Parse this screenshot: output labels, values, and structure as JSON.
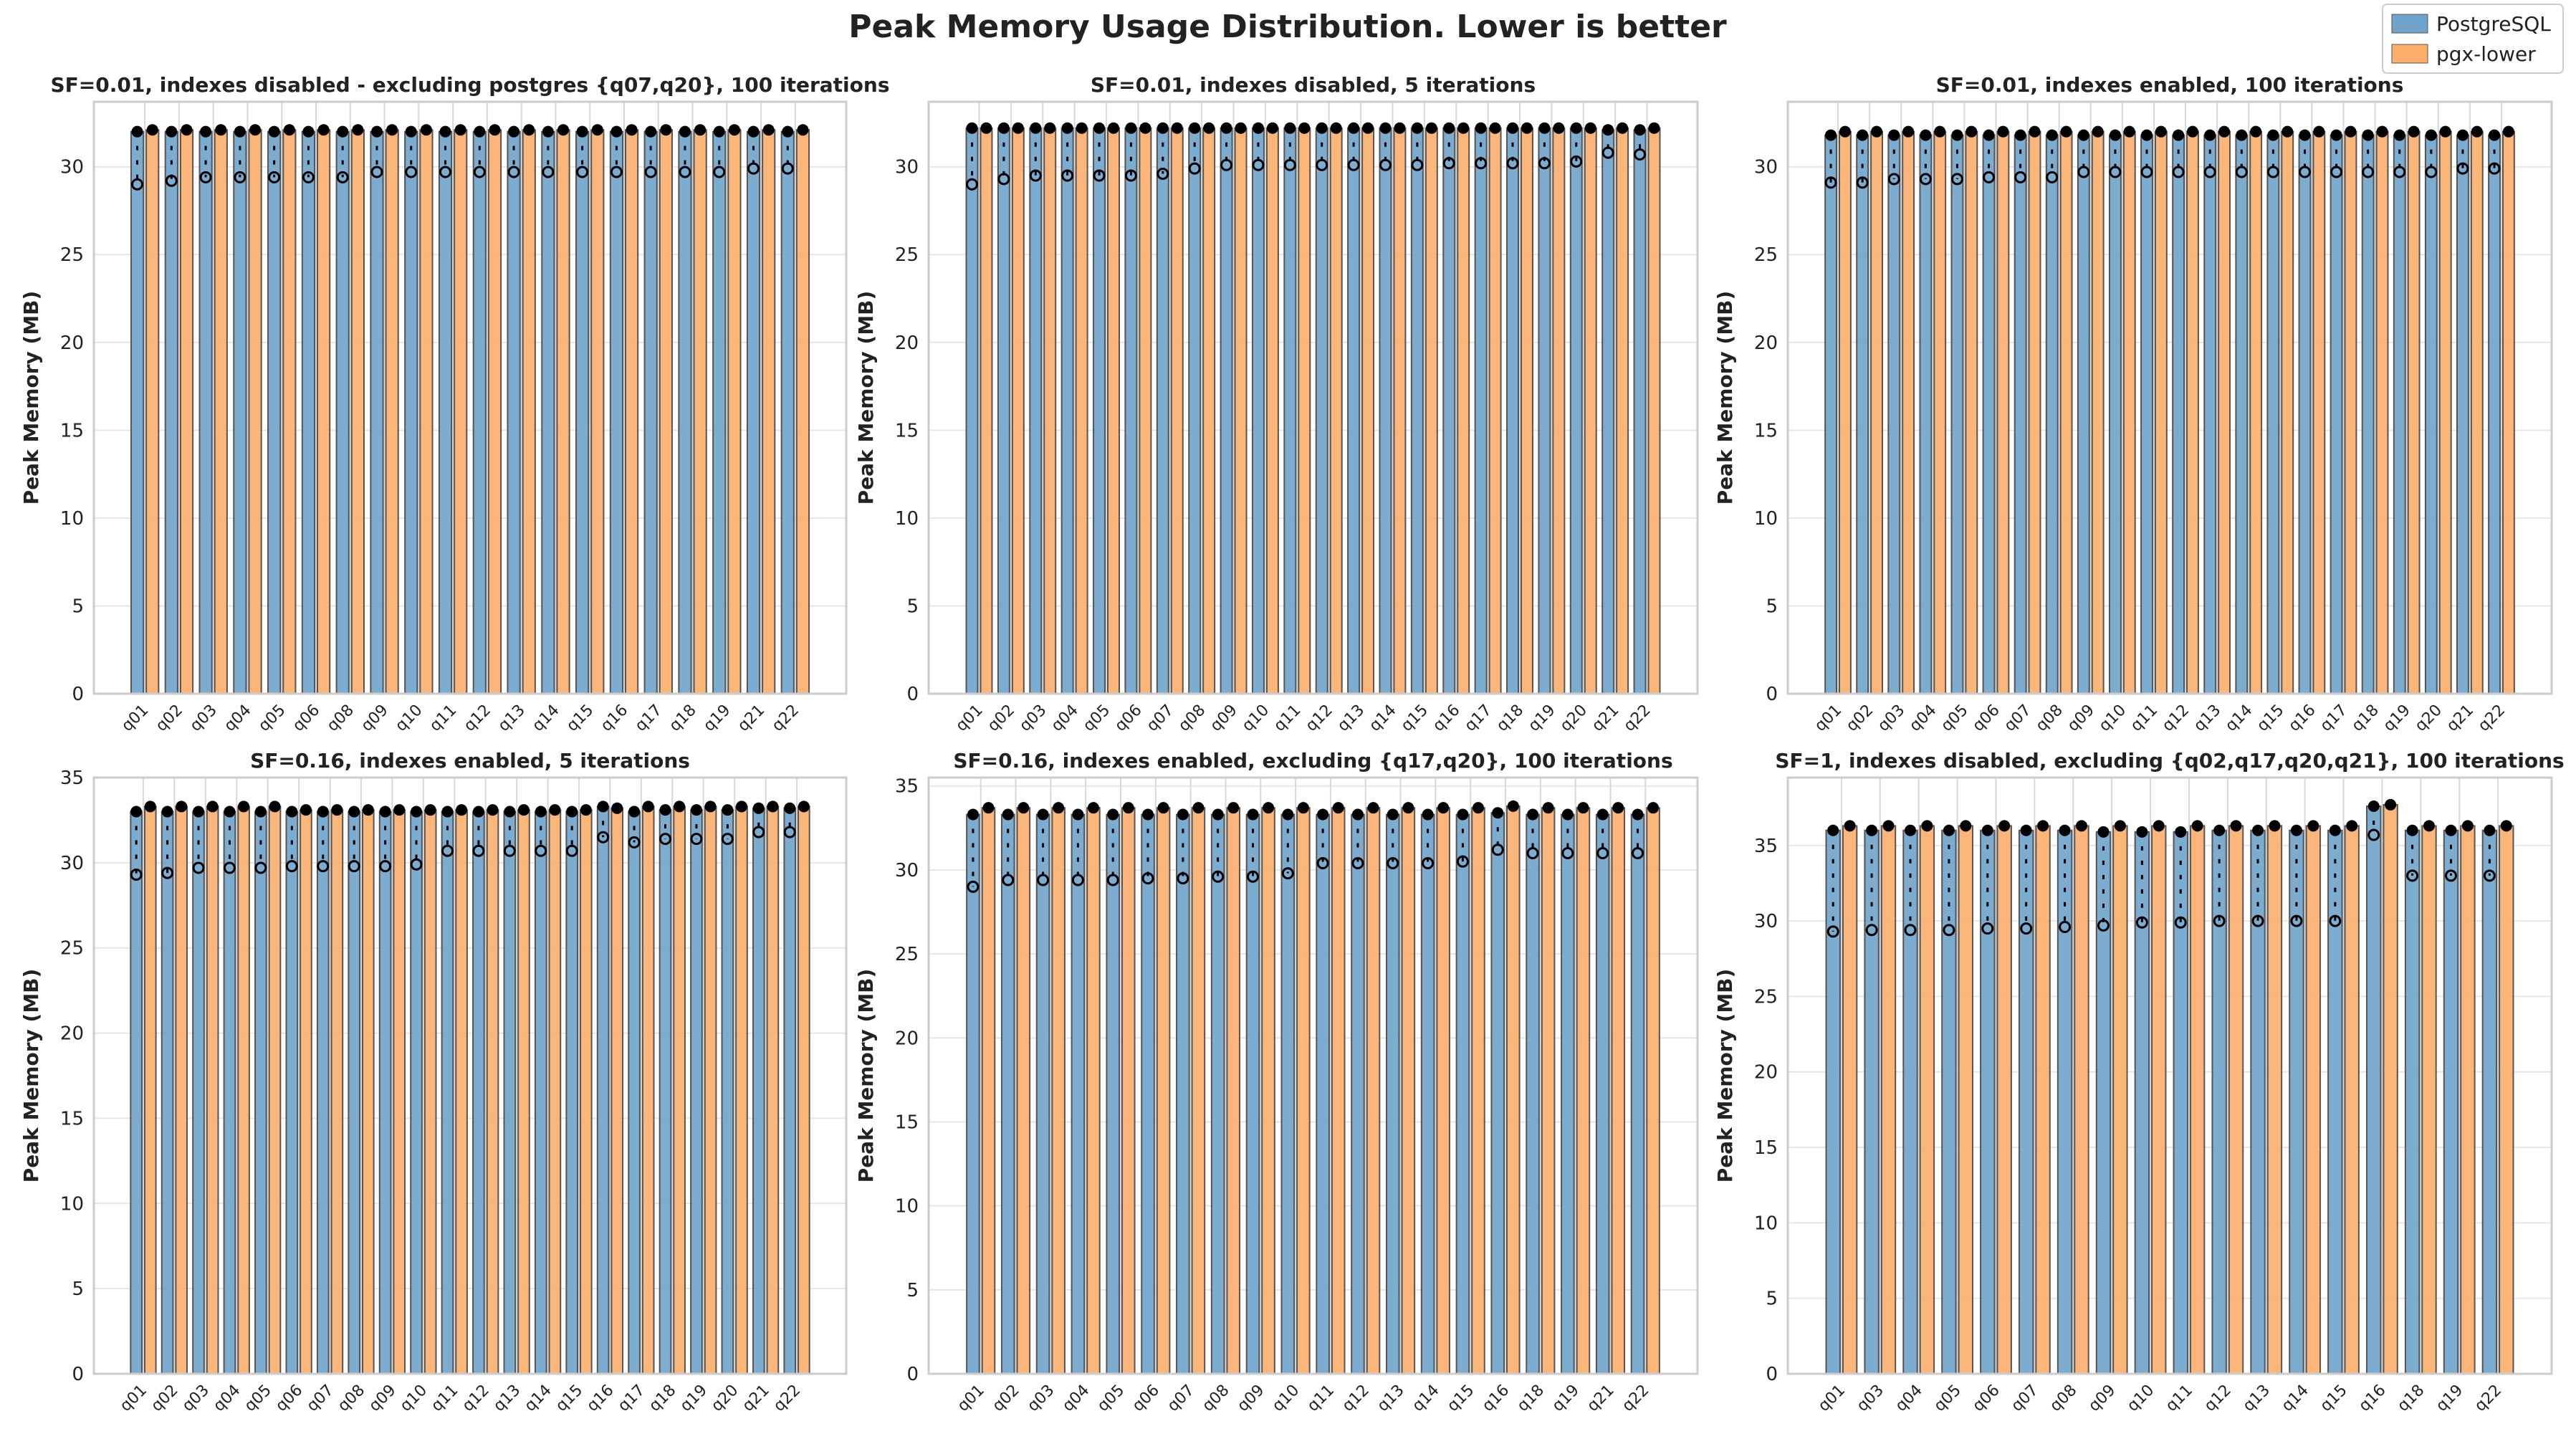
{
  "title": "Peak Memory Usage Distribution. Lower is better",
  "legend": {
    "placement": "top-right",
    "items": [
      {
        "name": "PostgreSQL",
        "color": "#6fa3cc"
      },
      {
        "name": "pgx-lower",
        "color": "#fdae6b"
      }
    ]
  },
  "chart_data": [
    {
      "type": "bar",
      "title": "SF=0.01, indexes disabled - excluding postgres {q07,q20}, 100 iterations",
      "ylabel": "Peak Memory (MB)",
      "ylim": [
        0,
        33.7
      ],
      "yticks": [
        0,
        5,
        10,
        15,
        20,
        25,
        30
      ],
      "grid": true,
      "categories": [
        "q01",
        "q02",
        "q03",
        "q04",
        "q05",
        "q06",
        "q08",
        "q09",
        "q10",
        "q11",
        "q12",
        "q13",
        "q14",
        "q15",
        "q16",
        "q17",
        "q18",
        "q19",
        "q21",
        "q22"
      ],
      "series": [
        {
          "name": "PostgreSQL",
          "values": [
            32.0,
            32.0,
            32.0,
            32.0,
            32.0,
            32.0,
            32.0,
            32.0,
            32.0,
            32.0,
            32.0,
            32.0,
            32.0,
            32.0,
            32.0,
            32.0,
            32.0,
            32.0,
            32.0,
            32.0
          ],
          "min_outliers": [
            29.0,
            29.2,
            29.4,
            29.4,
            29.4,
            29.4,
            29.4,
            29.7,
            29.7,
            29.7,
            29.7,
            29.7,
            29.7,
            29.7,
            29.7,
            29.7,
            29.7,
            29.7,
            29.9,
            29.9
          ]
        },
        {
          "name": "pgx-lower",
          "values": [
            32.1,
            32.1,
            32.1,
            32.1,
            32.1,
            32.1,
            32.1,
            32.1,
            32.1,
            32.1,
            32.1,
            32.1,
            32.1,
            32.1,
            32.1,
            32.1,
            32.1,
            32.1,
            32.1,
            32.1
          ]
        }
      ]
    },
    {
      "type": "bar",
      "title": "SF=0.01, indexes disabled, 5 iterations",
      "ylabel": "Peak Memory (MB)",
      "ylim": [
        0,
        33.7
      ],
      "yticks": [
        0,
        5,
        10,
        15,
        20,
        25,
        30
      ],
      "grid": true,
      "categories": [
        "q01",
        "q02",
        "q03",
        "q04",
        "q05",
        "q06",
        "q07",
        "q08",
        "q09",
        "q10",
        "q11",
        "q12",
        "q13",
        "q14",
        "q15",
        "q16",
        "q17",
        "q18",
        "q19",
        "q20",
        "q21",
        "q22"
      ],
      "series": [
        {
          "name": "PostgreSQL",
          "values": [
            32.2,
            32.2,
            32.2,
            32.2,
            32.2,
            32.2,
            32.2,
            32.2,
            32.2,
            32.2,
            32.2,
            32.2,
            32.2,
            32.2,
            32.2,
            32.2,
            32.2,
            32.2,
            32.2,
            32.2,
            32.1,
            32.1
          ],
          "min_outliers": [
            29.0,
            29.3,
            29.5,
            29.5,
            29.5,
            29.5,
            29.6,
            29.9,
            30.1,
            30.1,
            30.1,
            30.1,
            30.1,
            30.1,
            30.1,
            30.2,
            30.2,
            30.2,
            30.2,
            30.3,
            30.8,
            30.7
          ]
        },
        {
          "name": "pgx-lower",
          "values": [
            32.2,
            32.2,
            32.2,
            32.2,
            32.2,
            32.2,
            32.2,
            32.2,
            32.2,
            32.2,
            32.2,
            32.2,
            32.2,
            32.2,
            32.2,
            32.2,
            32.2,
            32.2,
            32.2,
            32.2,
            32.2,
            32.2
          ]
        }
      ]
    },
    {
      "type": "bar",
      "title": "SF=0.01, indexes enabled, 100 iterations",
      "ylabel": "Peak Memory (MB)",
      "ylim": [
        0,
        33.7
      ],
      "yticks": [
        0,
        5,
        10,
        15,
        20,
        25,
        30
      ],
      "grid": true,
      "categories": [
        "q01",
        "q02",
        "q03",
        "q04",
        "q05",
        "q06",
        "q07",
        "q08",
        "q09",
        "q10",
        "q11",
        "q12",
        "q13",
        "q14",
        "q15",
        "q16",
        "q17",
        "q18",
        "q19",
        "q20",
        "q21",
        "q22"
      ],
      "series": [
        {
          "name": "PostgreSQL",
          "values": [
            31.8,
            31.8,
            31.8,
            31.8,
            31.8,
            31.8,
            31.8,
            31.8,
            31.8,
            31.8,
            31.8,
            31.8,
            31.8,
            31.8,
            31.8,
            31.8,
            31.8,
            31.8,
            31.8,
            31.8,
            31.8,
            31.8
          ],
          "min_outliers": [
            29.1,
            29.1,
            29.3,
            29.3,
            29.3,
            29.4,
            29.4,
            29.4,
            29.7,
            29.7,
            29.7,
            29.7,
            29.7,
            29.7,
            29.7,
            29.7,
            29.7,
            29.7,
            29.7,
            29.7,
            29.9,
            29.9
          ]
        },
        {
          "name": "pgx-lower",
          "values": [
            32.0,
            32.0,
            32.0,
            32.0,
            32.0,
            32.0,
            32.0,
            32.0,
            32.0,
            32.0,
            32.0,
            32.0,
            32.0,
            32.0,
            32.0,
            32.0,
            32.0,
            32.0,
            32.0,
            32.0,
            32.0,
            32.0
          ]
        }
      ]
    },
    {
      "type": "bar",
      "title": "SF=0.16, indexes enabled, 5 iterations",
      "ylabel": "Peak Memory (MB)",
      "ylim": [
        0,
        35.0
      ],
      "yticks": [
        0,
        5,
        10,
        15,
        20,
        25,
        30,
        35
      ],
      "grid": true,
      "categories": [
        "q01",
        "q02",
        "q03",
        "q04",
        "q05",
        "q06",
        "q07",
        "q08",
        "q09",
        "q10",
        "q11",
        "q12",
        "q13",
        "q14",
        "q15",
        "q16",
        "q17",
        "q18",
        "q19",
        "q20",
        "q21",
        "q22"
      ],
      "series": [
        {
          "name": "PostgreSQL",
          "values": [
            33.0,
            33.0,
            33.0,
            33.0,
            33.0,
            33.0,
            33.0,
            33.0,
            33.0,
            33.0,
            33.0,
            33.0,
            33.0,
            33.0,
            33.0,
            33.3,
            33.0,
            33.1,
            33.1,
            33.1,
            33.2,
            33.2
          ],
          "min_outliers": [
            29.3,
            29.4,
            29.7,
            29.7,
            29.7,
            29.8,
            29.8,
            29.8,
            29.8,
            29.9,
            30.7,
            30.7,
            30.7,
            30.7,
            30.7,
            31.5,
            31.2,
            31.4,
            31.4,
            31.4,
            31.8,
            31.8
          ]
        },
        {
          "name": "pgx-lower",
          "values": [
            33.3,
            33.3,
            33.3,
            33.3,
            33.3,
            33.1,
            33.1,
            33.1,
            33.1,
            33.1,
            33.1,
            33.1,
            33.1,
            33.1,
            33.1,
            33.2,
            33.3,
            33.3,
            33.3,
            33.3,
            33.3,
            33.3
          ]
        }
      ]
    },
    {
      "type": "bar",
      "title": "SF=0.16, indexes enabled, excluding {q17,q20}, 100 iterations",
      "ylabel": "Peak Memory (MB)",
      "ylim": [
        0,
        35.5
      ],
      "yticks": [
        0,
        5,
        10,
        15,
        20,
        25,
        30,
        35
      ],
      "grid": true,
      "categories": [
        "q01",
        "q02",
        "q03",
        "q04",
        "q05",
        "q06",
        "q07",
        "q08",
        "q09",
        "q10",
        "q11",
        "q12",
        "q13",
        "q14",
        "q15",
        "q16",
        "q18",
        "q19",
        "q21",
        "q22"
      ],
      "series": [
        {
          "name": "PostgreSQL",
          "values": [
            33.3,
            33.3,
            33.3,
            33.3,
            33.3,
            33.3,
            33.3,
            33.3,
            33.3,
            33.3,
            33.3,
            33.3,
            33.3,
            33.3,
            33.3,
            33.4,
            33.3,
            33.3,
            33.3,
            33.3
          ],
          "min_outliers": [
            29.0,
            29.4,
            29.4,
            29.4,
            29.4,
            29.5,
            29.5,
            29.6,
            29.6,
            29.8,
            30.4,
            30.4,
            30.4,
            30.4,
            30.5,
            31.2,
            31.0,
            31.0,
            31.0,
            31.0
          ]
        },
        {
          "name": "pgx-lower",
          "values": [
            33.7,
            33.7,
            33.7,
            33.7,
            33.7,
            33.7,
            33.7,
            33.7,
            33.7,
            33.7,
            33.7,
            33.7,
            33.7,
            33.7,
            33.7,
            33.8,
            33.7,
            33.7,
            33.7,
            33.7
          ]
        }
      ]
    },
    {
      "type": "bar",
      "title": "SF=1, indexes disabled, excluding {q02,q17,q20,q21}, 100 iterations",
      "ylabel": "Peak Memory (MB)",
      "ylim": [
        0,
        39.5
      ],
      "yticks": [
        0,
        5,
        10,
        15,
        20,
        25,
        30,
        35
      ],
      "grid": true,
      "categories": [
        "q01",
        "q03",
        "q04",
        "q05",
        "q06",
        "q07",
        "q08",
        "q09",
        "q10",
        "q11",
        "q12",
        "q13",
        "q14",
        "q15",
        "q16",
        "q18",
        "q19",
        "q22"
      ],
      "series": [
        {
          "name": "PostgreSQL",
          "values": [
            36.0,
            36.0,
            36.0,
            36.0,
            36.0,
            36.0,
            36.0,
            35.9,
            35.9,
            35.9,
            36.0,
            36.0,
            36.0,
            36.0,
            37.6,
            36.0,
            36.0,
            36.0
          ],
          "min_outliers": [
            29.3,
            29.4,
            29.4,
            29.4,
            29.5,
            29.5,
            29.6,
            29.7,
            29.9,
            29.9,
            30.0,
            30.0,
            30.0,
            30.0,
            35.7,
            33.0,
            33.0,
            33.0
          ]
        },
        {
          "name": "pgx-lower",
          "values": [
            36.3,
            36.3,
            36.3,
            36.3,
            36.3,
            36.3,
            36.3,
            36.3,
            36.3,
            36.3,
            36.3,
            36.3,
            36.3,
            36.3,
            37.7,
            36.3,
            36.3,
            36.3
          ]
        }
      ]
    }
  ]
}
